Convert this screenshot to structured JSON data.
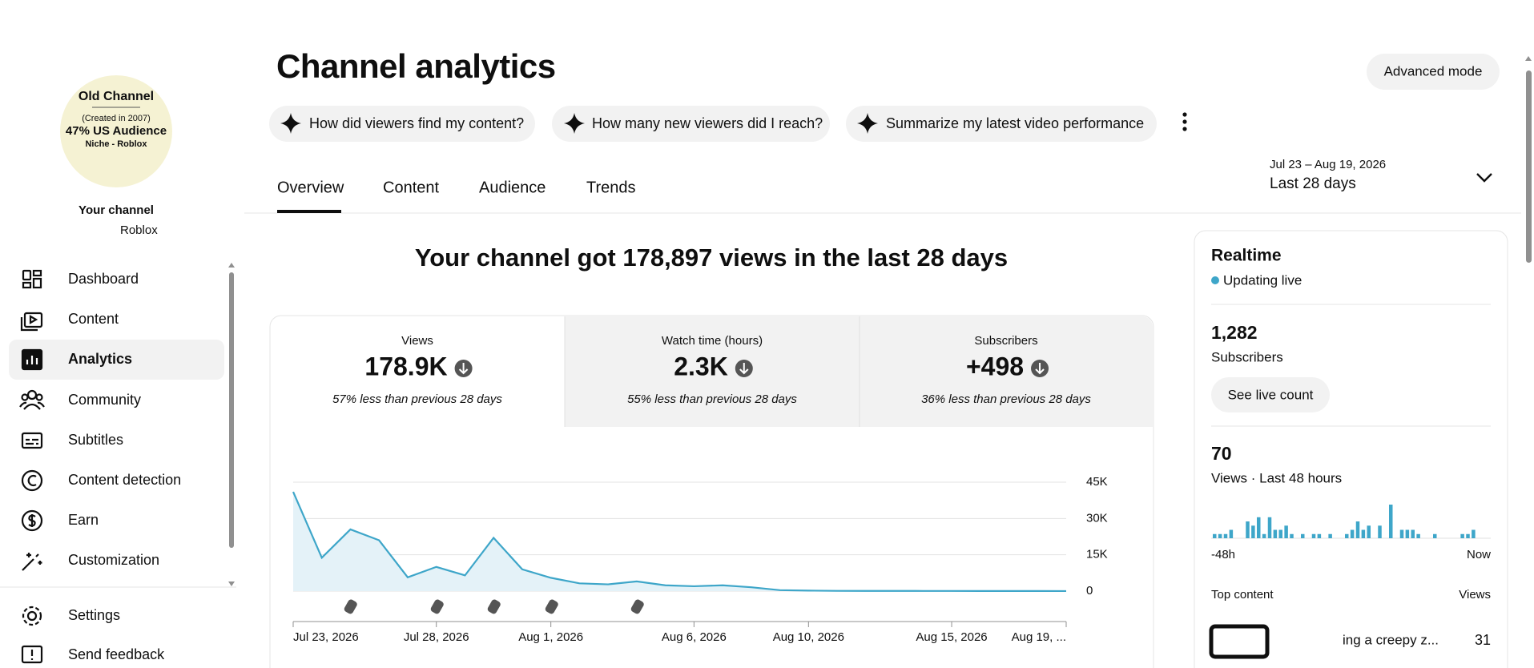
{
  "sidebar": {
    "avatar_lines": [
      "Old Channel",
      "(Created in 2007)",
      "47% US Audience",
      "Niche - Roblox"
    ],
    "channel_label": "Your channel",
    "channel_name": "Roblox",
    "nav": [
      "Dashboard",
      "Content",
      "Analytics",
      "Community",
      "Subtitles",
      "Content detection",
      "Earn",
      "Customization"
    ],
    "footer_nav": [
      "Settings",
      "Send feedback"
    ]
  },
  "header": {
    "title": "Channel analytics",
    "advanced_mode": "Advanced mode",
    "chips": [
      "How did viewers find my content?",
      "How many new viewers did I reach?",
      "Summarize my latest video performance"
    ],
    "tabs": [
      "Overview",
      "Content",
      "Audience",
      "Trends"
    ],
    "date_range": "Jul 23 – Aug 19, 2026",
    "period": "Last 28 days"
  },
  "summary": {
    "headline": "Your channel got 178,897 views in the last 28 days",
    "metrics": [
      {
        "label": "Views",
        "value": "178.9K",
        "change": "57% less than previous 28 days"
      },
      {
        "label": "Watch time (hours)",
        "value": "2.3K",
        "change": "55% less than previous 28 days"
      },
      {
        "label": "Subscribers",
        "value": "+498",
        "change": "36% less than previous 28 days"
      }
    ]
  },
  "chart_data": {
    "type": "line",
    "x": [
      "Jul 23, 2026",
      "Jul 24, 2026",
      "Jul 25, 2026",
      "Jul 26, 2026",
      "Jul 27, 2026",
      "Jul 28, 2026",
      "Jul 29, 2026",
      "Jul 30, 2026",
      "Jul 31, 2026",
      "Aug 1, 2026",
      "Aug 2, 2026",
      "Aug 3, 2026",
      "Aug 4, 2026",
      "Aug 5, 2026",
      "Aug 6, 2026",
      "Aug 7, 2026",
      "Aug 8, 2026",
      "Aug 9, 2026",
      "Aug 10, 2026",
      "Aug 11, 2026",
      "Aug 12, 2026",
      "Aug 13, 2026",
      "Aug 14, 2026",
      "Aug 15, 2026",
      "Aug 16, 2026",
      "Aug 17, 2026",
      "Aug 18, 2026",
      "Aug 19, 2026"
    ],
    "values": [
      41000,
      13800,
      25500,
      21000,
      5700,
      10000,
      6500,
      22000,
      9000,
      5500,
      3200,
      2800,
      4000,
      2400,
      2000,
      2400,
      1600,
      400,
      200,
      100,
      90,
      80,
      70,
      60,
      50,
      40,
      30,
      20
    ],
    "color": "#3ea6c9",
    "fill": "#e4f2f8",
    "ylim": [
      0,
      45000
    ],
    "yticks": [
      {
        "value": 0,
        "label": "0"
      },
      {
        "value": 15000,
        "label": "15K"
      },
      {
        "value": 30000,
        "label": "30K"
      },
      {
        "value": 45000,
        "label": "45K"
      }
    ],
    "xticks": [
      "Jul 23, 2026",
      "Jul 28, 2026",
      "Aug 1, 2026",
      "Aug 6, 2026",
      "Aug 10, 2026",
      "Aug 15, 2026",
      {
        "value": "Aug 19, 2026",
        "label": "Aug 19, ..."
      }
    ],
    "grid": true
  },
  "realtime": {
    "title": "Realtime",
    "status": "Updating live",
    "subscribers": "1,282",
    "subscribers_label": "Subscribers",
    "live_button": "See live count",
    "views": "70",
    "views_label": "Views · Last 48 hours",
    "hourly_views": [
      1,
      1,
      1,
      2,
      0,
      0,
      4,
      3,
      5,
      1,
      5,
      2,
      2,
      3,
      1,
      0,
      1,
      0,
      1,
      1,
      0,
      1,
      0,
      0,
      1,
      2,
      4,
      2,
      3,
      0,
      3,
      0,
      8,
      0,
      2,
      2,
      2,
      1,
      0,
      0,
      1,
      0,
      0,
      0,
      0,
      1,
      1,
      2
    ],
    "bar_color": "#3ea6c9",
    "start_label": "-48h",
    "end_label": "Now",
    "top_content_label": "Top content",
    "top_content_views_label": "Views",
    "top_content": [
      {
        "title": "ing a creepy z...",
        "views": "31"
      }
    ]
  }
}
